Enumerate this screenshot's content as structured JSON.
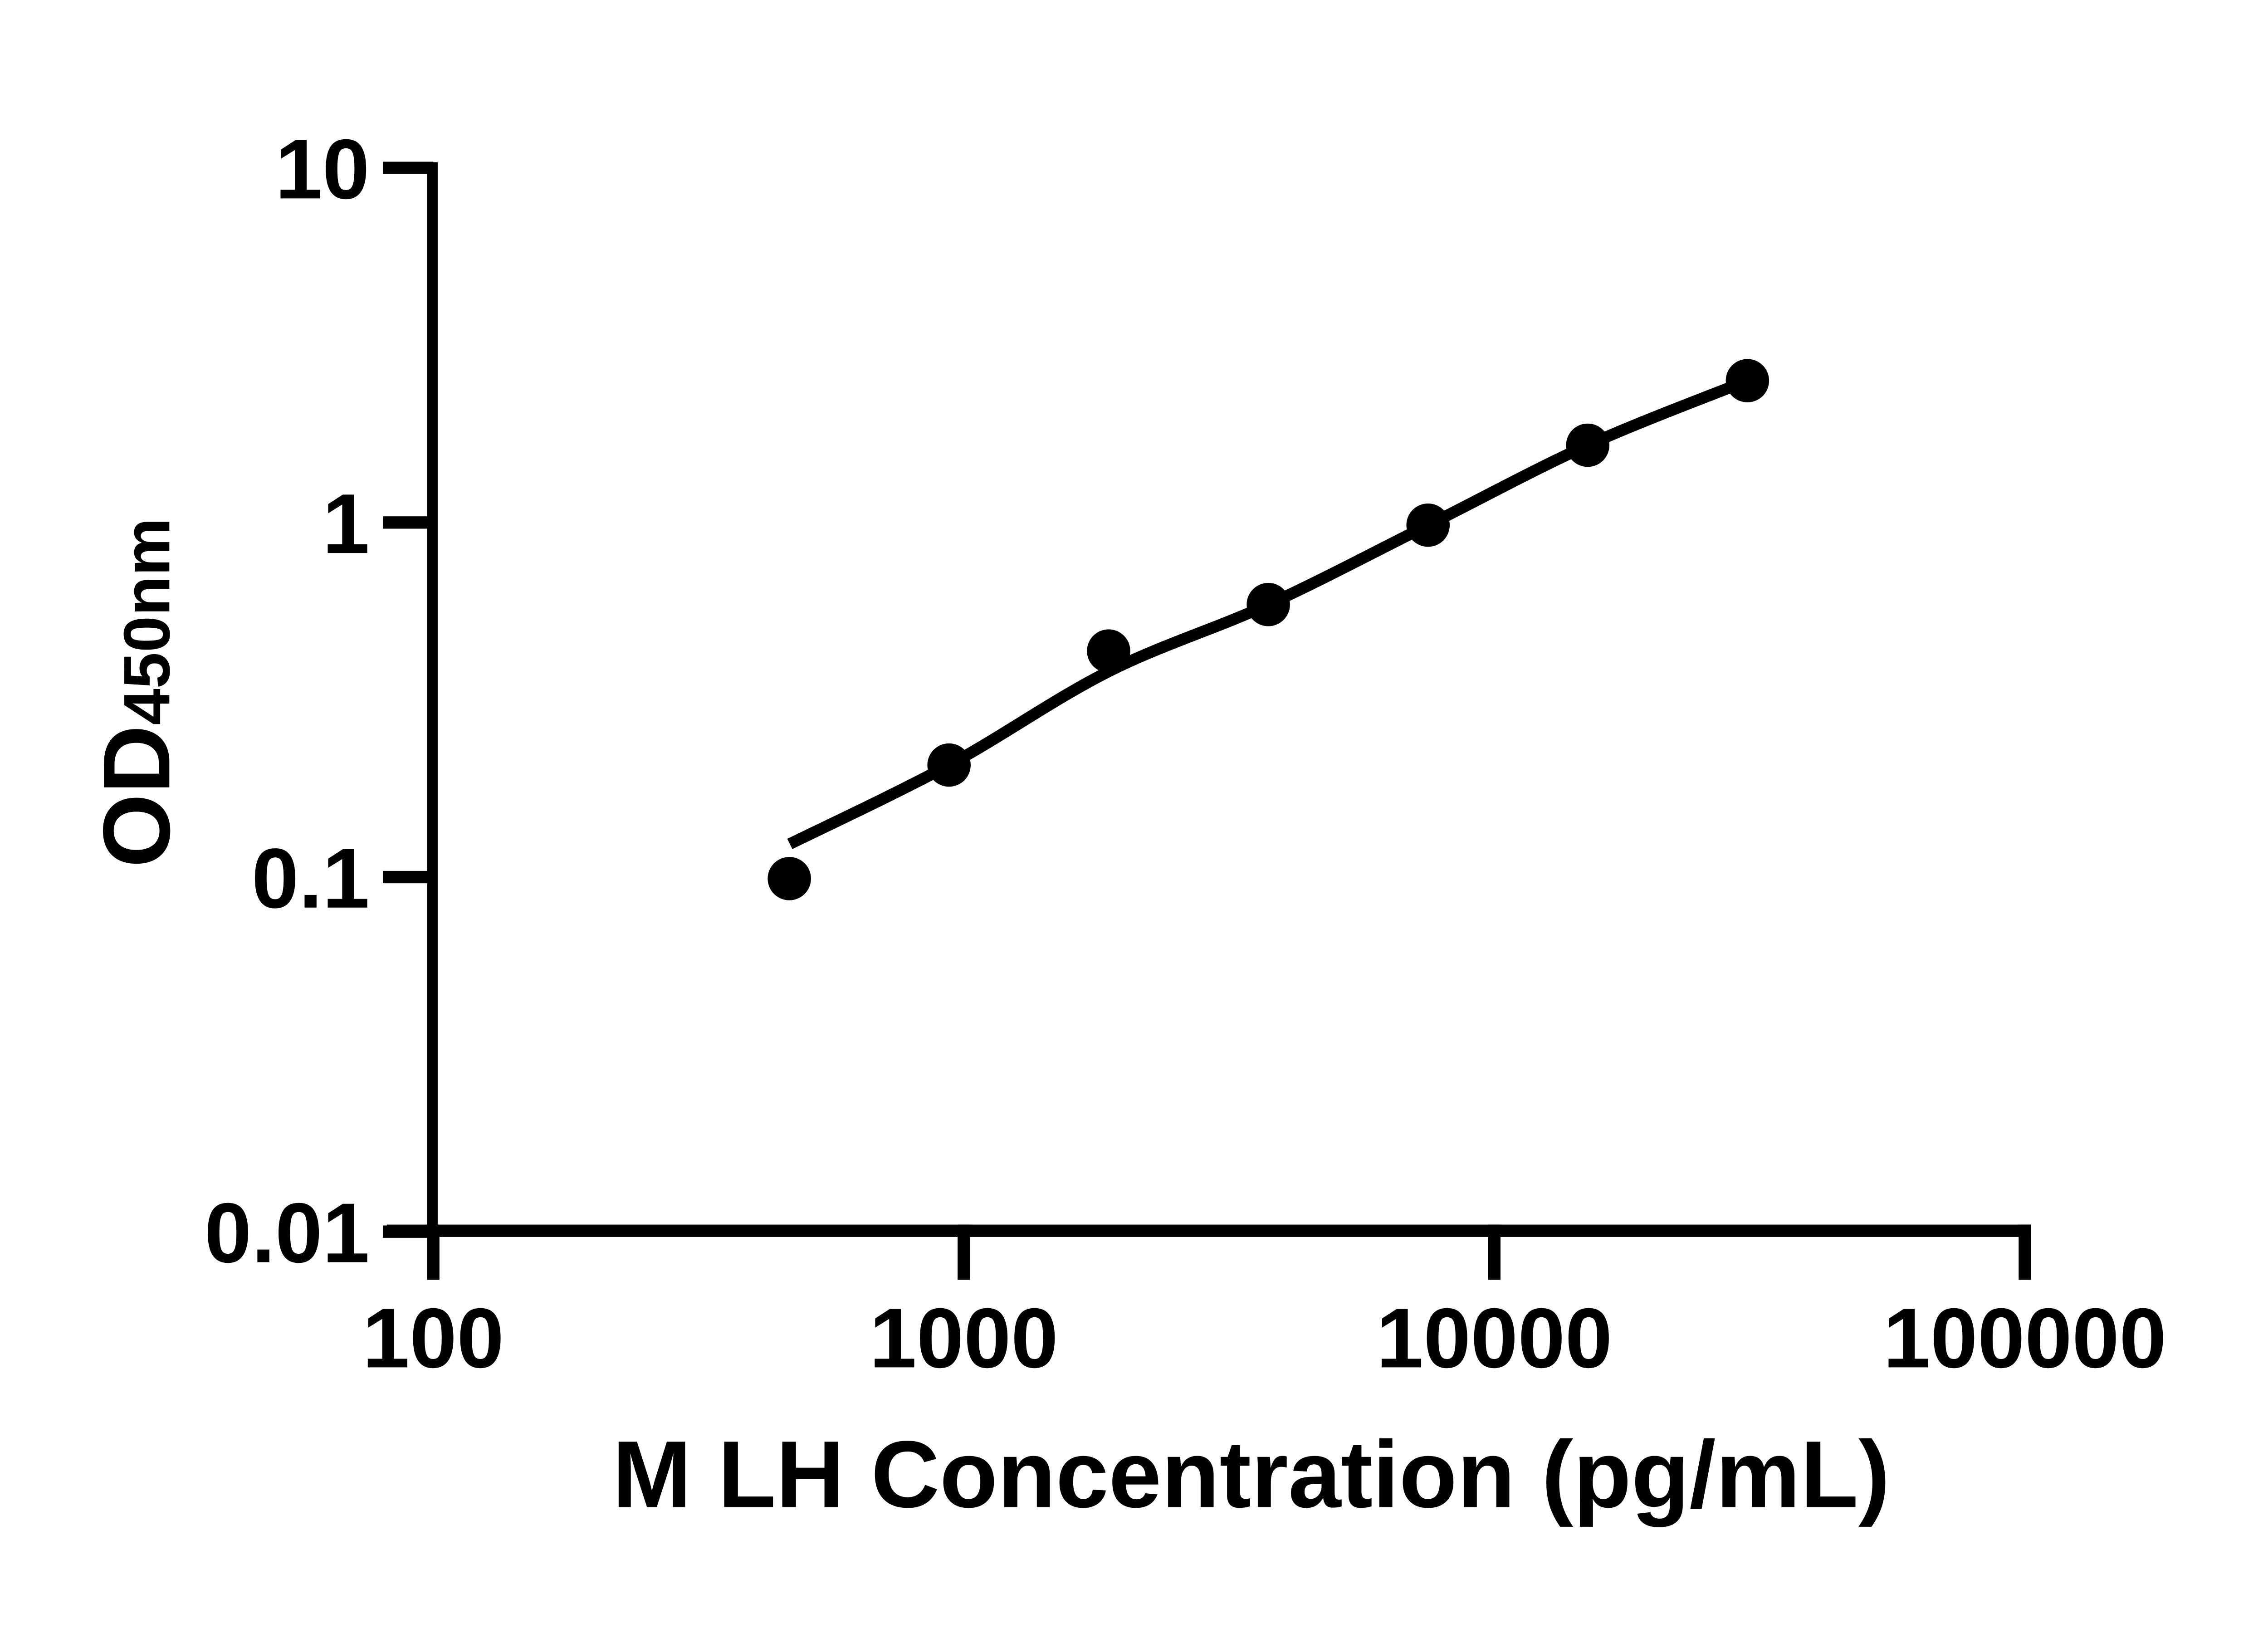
{
  "figure": {
    "background": "#ffffff",
    "foreground": "#000000"
  },
  "chart_data": {
    "type": "scatter",
    "title": "",
    "xlabel": "M LH Concentration (pg/mL)",
    "ylabel_main": "OD",
    "ylabel_sub": "450nm",
    "x_scale": "log",
    "y_scale": "log",
    "xlim": [
      100,
      100000
    ],
    "ylim": [
      0.01,
      10
    ],
    "x_ticks": [
      100,
      1000,
      10000,
      100000
    ],
    "y_ticks": [
      0.01,
      0.1,
      1,
      10
    ],
    "grid": false,
    "legend": "none",
    "marker_color": "#000000",
    "line_color": "#000000",
    "series": [
      {
        "name": "standard-curve-points",
        "points": [
          {
            "x": 469,
            "y": 0.099
          },
          {
            "x": 938,
            "y": 0.207
          },
          {
            "x": 1875,
            "y": 0.434
          },
          {
            "x": 3750,
            "y": 0.587
          },
          {
            "x": 7500,
            "y": 0.983
          },
          {
            "x": 15000,
            "y": 1.652
          },
          {
            "x": 30000,
            "y": 2.512
          }
        ]
      }
    ],
    "fit_curve": {
      "name": "fitted-trend-line",
      "points": [
        {
          "x": 470,
          "y": 0.124
        },
        {
          "x": 938,
          "y": 0.207
        },
        {
          "x": 1875,
          "y": 0.38
        },
        {
          "x": 3750,
          "y": 0.587
        },
        {
          "x": 7500,
          "y": 0.983
        },
        {
          "x": 15000,
          "y": 1.652
        },
        {
          "x": 30000,
          "y": 2.512
        }
      ]
    }
  }
}
